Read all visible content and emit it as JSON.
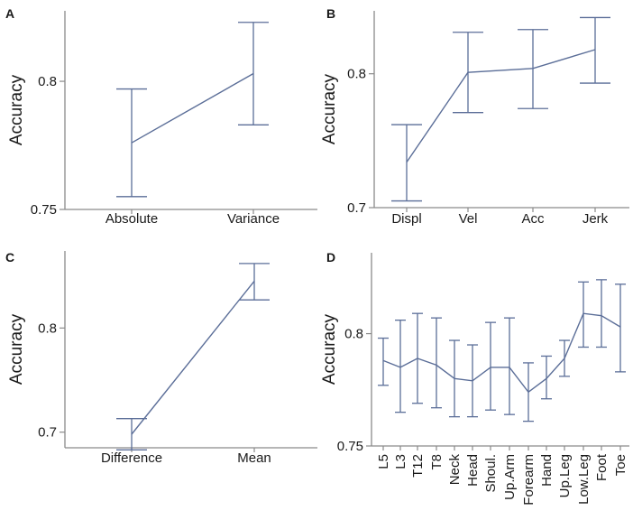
{
  "figure": {
    "colors": {
      "axis": "#8a8a8a",
      "series": "#5b6e98",
      "text": "#1a1a1a"
    }
  },
  "chart_data": [
    {
      "panel": "A",
      "type": "line",
      "ylabel": "Accuracy",
      "ylim": [
        0.75,
        0.8275
      ],
      "yticks": [
        {
          "value": 0.75,
          "label": "0.75"
        },
        {
          "value": 0.8,
          "label": "0.8"
        }
      ],
      "categories": [
        "Absolute",
        "Variance"
      ],
      "values": [
        0.776,
        0.803
      ],
      "err_low": [
        0.755,
        0.783
      ],
      "err_high": [
        0.797,
        0.823
      ],
      "xlabel_rotated": false
    },
    {
      "panel": "B",
      "type": "line",
      "ylabel": "Accuracy",
      "ylim": [
        0.7,
        0.847
      ],
      "yticks": [
        {
          "value": 0.7,
          "label": "0.7"
        },
        {
          "value": 0.8,
          "label": "0.8"
        }
      ],
      "categories": [
        "Displ",
        "Vel",
        "Acc",
        "Jerk"
      ],
      "values": [
        0.734,
        0.801,
        0.804,
        0.818
      ],
      "err_low": [
        0.705,
        0.771,
        0.774,
        0.793
      ],
      "err_high": [
        0.762,
        0.831,
        0.833,
        0.842
      ],
      "xlabel_rotated": false
    },
    {
      "panel": "C",
      "type": "line",
      "ylabel": "Accuracy",
      "ylim": [
        0.685,
        0.874
      ],
      "yticks": [
        {
          "value": 0.7,
          "label": "0.7"
        },
        {
          "value": 0.8,
          "label": "0.8"
        }
      ],
      "categories": [
        "Difference",
        "Mean"
      ],
      "values": [
        0.698,
        0.845
      ],
      "err_low": [
        0.683,
        0.827
      ],
      "err_high": [
        0.713,
        0.862
      ],
      "xlabel_rotated": false
    },
    {
      "panel": "D",
      "type": "line",
      "ylabel": "Accuracy",
      "ylim": [
        0.75,
        0.836
      ],
      "yticks": [
        {
          "value": 0.75,
          "label": "0.75"
        },
        {
          "value": 0.8,
          "label": "0.8"
        }
      ],
      "categories": [
        "L5",
        "L3",
        "T12",
        "T8",
        "Neck",
        "Head",
        "Shoul.",
        "Up.Arm",
        "Forearm",
        "Hand",
        "Up.Leg",
        "Low.Leg",
        "Foot",
        "Toe"
      ],
      "values": [
        0.788,
        0.785,
        0.789,
        0.786,
        0.78,
        0.779,
        0.785,
        0.785,
        0.774,
        0.78,
        0.789,
        0.809,
        0.808,
        0.803
      ],
      "err_low": [
        0.777,
        0.765,
        0.769,
        0.767,
        0.763,
        0.763,
        0.766,
        0.764,
        0.761,
        0.771,
        0.781,
        0.794,
        0.794,
        0.783
      ],
      "err_high": [
        0.798,
        0.806,
        0.809,
        0.807,
        0.797,
        0.795,
        0.805,
        0.807,
        0.787,
        0.79,
        0.797,
        0.823,
        0.824,
        0.822
      ],
      "xlabel_rotated": true
    }
  ]
}
